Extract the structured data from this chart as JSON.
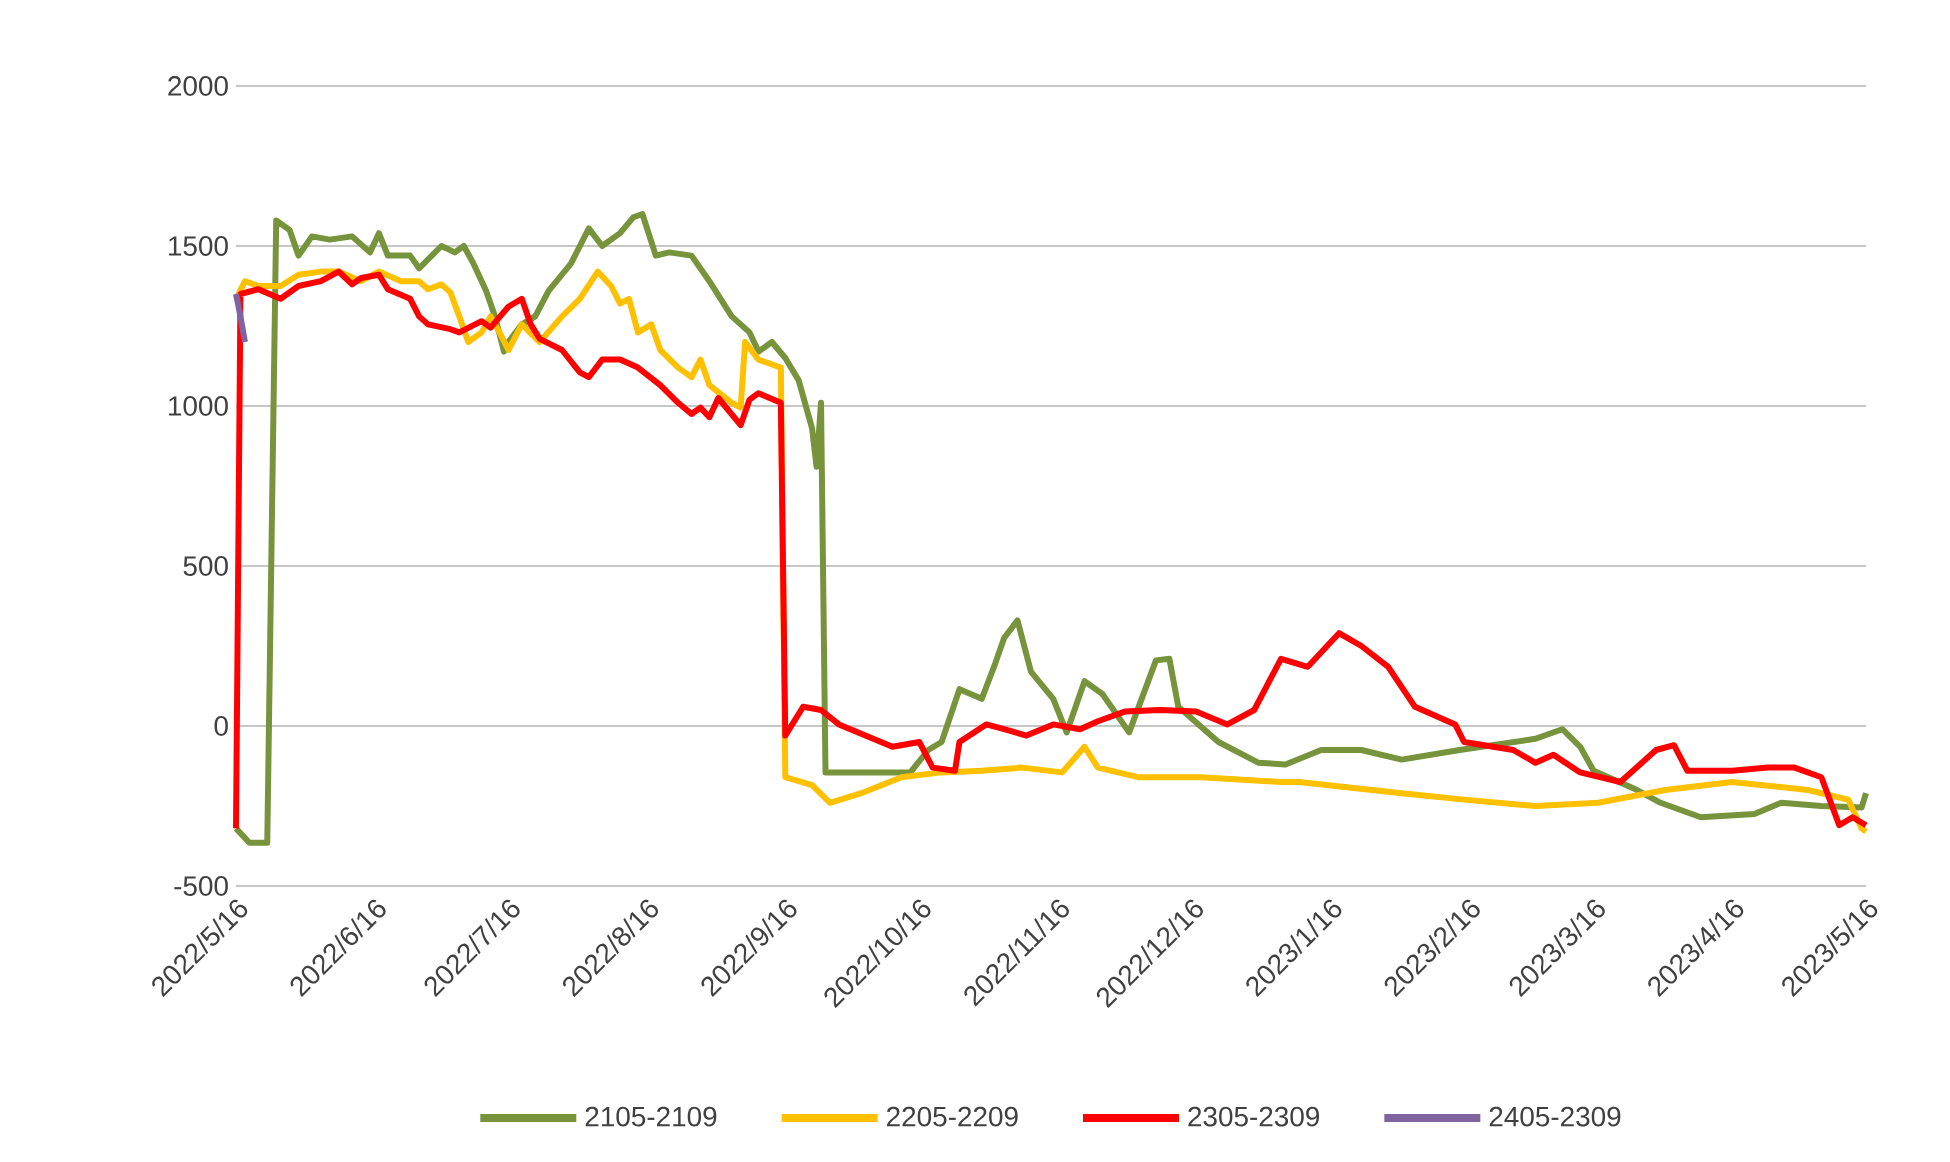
{
  "chart_data": {
    "type": "line",
    "xlim": [
      "2022-05-16",
      "2023-05-16"
    ],
    "ylim": [
      -500,
      2000
    ],
    "yticks": [
      -500,
      0,
      500,
      1000,
      1500,
      2000
    ],
    "grid": "y",
    "legend": "bottom",
    "xticks": [
      {
        "value": "2022-05-16",
        "label": "2022/5/16"
      },
      {
        "value": "2022-06-16",
        "label": "2022/6/16"
      },
      {
        "value": "2022-07-16",
        "label": "2022/7/16"
      },
      {
        "value": "2022-08-16",
        "label": "2022/8/16"
      },
      {
        "value": "2022-09-16",
        "label": "2022/9/16"
      },
      {
        "value": "2022-10-16",
        "label": "2022/10/16"
      },
      {
        "value": "2022-11-16",
        "label": "2022/11/16"
      },
      {
        "value": "2022-12-16",
        "label": "2022/12/16"
      },
      {
        "value": "2023-01-16",
        "label": "2023/1/16"
      },
      {
        "value": "2023-02-16",
        "label": "2023/2/16"
      },
      {
        "value": "2023-03-16",
        "label": "2023/3/16"
      },
      {
        "value": "2023-04-16",
        "label": "2023/4/16"
      },
      {
        "value": "2023-05-16",
        "label": "2023/5/16"
      }
    ],
    "series": [
      {
        "name": "2105-2109",
        "color": "#77933c",
        "x": [
          "2022-05-16",
          "2022-05-19",
          "2022-05-23",
          "2022-05-25",
          "2022-05-28",
          "2022-05-30",
          "2022-06-02",
          "2022-06-06",
          "2022-06-11",
          "2022-06-15",
          "2022-06-17",
          "2022-06-19",
          "2022-06-24",
          "2022-06-26",
          "2022-07-01",
          "2022-07-04",
          "2022-07-06",
          "2022-07-08",
          "2022-07-11",
          "2022-07-13",
          "2022-07-15",
          "2022-07-16",
          "2022-07-19",
          "2022-07-22",
          "2022-07-25",
          "2022-07-30",
          "2022-08-03",
          "2022-08-06",
          "2022-08-10",
          "2022-08-13",
          "2022-08-15",
          "2022-08-18",
          "2022-08-21",
          "2022-08-26",
          "2022-08-30",
          "2022-09-04",
          "2022-09-08",
          "2022-09-10",
          "2022-09-13",
          "2022-09-16",
          "2022-09-19",
          "2022-09-22",
          "2022-09-23",
          "2022-09-24",
          "2022-09-25",
          "2022-10-07",
          "2022-10-14",
          "2022-10-18",
          "2022-10-21",
          "2022-10-25",
          "2022-10-30",
          "2022-11-02",
          "2022-11-04",
          "2022-11-07",
          "2022-11-10",
          "2022-11-15",
          "2022-11-18",
          "2022-11-22",
          "2022-11-26",
          "2022-12-02",
          "2022-12-08",
          "2022-12-11",
          "2022-12-13",
          "2022-12-22",
          "2022-12-31",
          "2023-01-06",
          "2023-01-14",
          "2023-01-23",
          "2023-02-01",
          "2023-02-14",
          "2023-03-03",
          "2023-03-09",
          "2023-03-13",
          "2023-03-16",
          "2023-03-25",
          "2023-03-31",
          "2023-04-09",
          "2023-04-21",
          "2023-04-27",
          "2023-05-06",
          "2023-05-15",
          "2023-05-16"
        ],
        "values": [
          -320,
          -365,
          -365,
          1580,
          1550,
          1470,
          1530,
          1520,
          1530,
          1480,
          1540,
          1470,
          1470,
          1430,
          1500,
          1480,
          1500,
          1450,
          1360,
          1280,
          1170,
          1200,
          1255,
          1280,
          1360,
          1445,
          1555,
          1500,
          1540,
          1590,
          1600,
          1470,
          1480,
          1470,
          1390,
          1280,
          1230,
          1170,
          1200,
          1150,
          1080,
          930,
          810,
          1010,
          -145,
          -145,
          -145,
          -75,
          -50,
          115,
          85,
          195,
          275,
          330,
          170,
          85,
          -20,
          140,
          100,
          -20,
          205,
          210,
          60,
          -50,
          -115,
          -120,
          -75,
          -75,
          -105,
          -75,
          -40,
          -10,
          -65,
          -140,
          -195,
          -240,
          -285,
          -275,
          -240,
          -250,
          -255,
          -210
        ]
      },
      {
        "name": "2205-2209",
        "color": "#ffc000",
        "x": [
          "2022-05-16",
          "2022-05-18",
          "2022-05-21",
          "2022-05-26",
          "2022-05-30",
          "2022-06-04",
          "2022-06-08",
          "2022-06-13",
          "2022-06-17",
          "2022-06-22",
          "2022-06-26",
          "2022-06-28",
          "2022-07-01",
          "2022-07-03",
          "2022-07-05",
          "2022-07-07",
          "2022-07-10",
          "2022-07-12",
          "2022-07-14",
          "2022-07-16",
          "2022-07-19",
          "2022-07-23",
          "2022-07-28",
          "2022-08-01",
          "2022-08-05",
          "2022-08-08",
          "2022-08-10",
          "2022-08-12",
          "2022-08-14",
          "2022-08-17",
          "2022-08-19",
          "2022-08-23",
          "2022-08-26",
          "2022-08-28",
          "2022-08-30",
          "2022-09-04",
          "2022-09-06",
          "2022-09-07",
          "2022-09-10",
          "2022-09-15",
          "2022-09-16",
          "2022-09-22",
          "2022-09-26",
          "2022-10-03",
          "2022-10-12",
          "2022-10-21",
          "2022-10-30",
          "2022-11-08",
          "2022-11-17",
          "2022-11-22",
          "2022-11-25",
          "2022-12-04",
          "2022-12-18",
          "2023-01-05",
          "2023-01-09",
          "2023-02-01",
          "2023-02-15",
          "2023-03-03",
          "2023-03-17",
          "2023-04-01",
          "2023-04-16",
          "2023-05-03",
          "2023-05-12",
          "2023-05-15",
          "2023-05-16"
        ],
        "values": [
          1335,
          1390,
          1375,
          1375,
          1410,
          1420,
          1420,
          1390,
          1420,
          1390,
          1390,
          1365,
          1380,
          1355,
          1280,
          1200,
          1230,
          1280,
          1230,
          1175,
          1255,
          1200,
          1280,
          1335,
          1420,
          1375,
          1320,
          1335,
          1230,
          1255,
          1175,
          1120,
          1090,
          1145,
          1065,
          1010,
          995,
          1200,
          1145,
          1120,
          -160,
          -185,
          -240,
          -210,
          -160,
          -145,
          -140,
          -130,
          -145,
          -65,
          -130,
          -160,
          -160,
          -175,
          -175,
          -210,
          -230,
          -250,
          -240,
          -200,
          -175,
          -200,
          -230,
          -320,
          -330
        ]
      },
      {
        "name": "2305-2309",
        "color": "#ff0000",
        "x": [
          "2022-05-16",
          "2022-05-17",
          "2022-05-21",
          "2022-05-26",
          "2022-05-30",
          "2022-06-04",
          "2022-06-08",
          "2022-06-11",
          "2022-06-13",
          "2022-06-17",
          "2022-06-19",
          "2022-06-24",
          "2022-06-26",
          "2022-06-28",
          "2022-07-03",
          "2022-07-05",
          "2022-07-10",
          "2022-07-12",
          "2022-07-16",
          "2022-07-19",
          "2022-07-21",
          "2022-07-23",
          "2022-07-28",
          "2022-08-01",
          "2022-08-03",
          "2022-08-06",
          "2022-08-10",
          "2022-08-14",
          "2022-08-19",
          "2022-08-23",
          "2022-08-26",
          "2022-08-28",
          "2022-08-30",
          "2022-09-01",
          "2022-09-06",
          "2022-09-08",
          "2022-09-10",
          "2022-09-15",
          "2022-09-16",
          "2022-09-20",
          "2022-09-24",
          "2022-09-28",
          "2022-10-10",
          "2022-10-16",
          "2022-10-19",
          "2022-10-24",
          "2022-10-25",
          "2022-10-31",
          "2022-11-04",
          "2022-11-09",
          "2022-11-15",
          "2022-11-21",
          "2022-11-25",
          "2022-12-01",
          "2022-12-09",
          "2022-12-17",
          "2022-12-24",
          "2022-12-30",
          "2023-01-05",
          "2023-01-11",
          "2023-01-17",
          "2023-01-18",
          "2023-01-23",
          "2023-01-29",
          "2023-02-04",
          "2023-02-13",
          "2023-02-15",
          "2023-02-26",
          "2023-03-03",
          "2023-03-07",
          "2023-03-13",
          "2023-03-22",
          "2023-03-30",
          "2023-04-03",
          "2023-04-06",
          "2023-04-16",
          "2023-04-24",
          "2023-04-30",
          "2023-05-06",
          "2023-05-10",
          "2023-05-13",
          "2023-05-16"
        ],
        "values": [
          -320,
          1350,
          1365,
          1335,
          1375,
          1390,
          1420,
          1380,
          1400,
          1410,
          1365,
          1335,
          1280,
          1255,
          1240,
          1230,
          1265,
          1245,
          1310,
          1335,
          1255,
          1210,
          1175,
          1105,
          1090,
          1145,
          1145,
          1120,
          1065,
          1010,
          975,
          995,
          965,
          1025,
          940,
          1020,
          1040,
          1010,
          -30,
          60,
          50,
          5,
          -65,
          -50,
          -130,
          -140,
          -50,
          5,
          -10,
          -30,
          5,
          -10,
          15,
          45,
          50,
          45,
          5,
          50,
          210,
          185,
          275,
          290,
          250,
          185,
          60,
          5,
          -50,
          -75,
          -115,
          -90,
          -145,
          -175,
          -75,
          -60,
          -140,
          -140,
          -130,
          -130,
          -160,
          -310,
          -285,
          -310
        ]
      },
      {
        "name": "2405-2309",
        "color": "#8064a2",
        "x": [
          "2022-05-16",
          "2022-05-17",
          "2022-05-18"
        ],
        "values": [
          1350,
          1280,
          1200
        ]
      }
    ]
  }
}
